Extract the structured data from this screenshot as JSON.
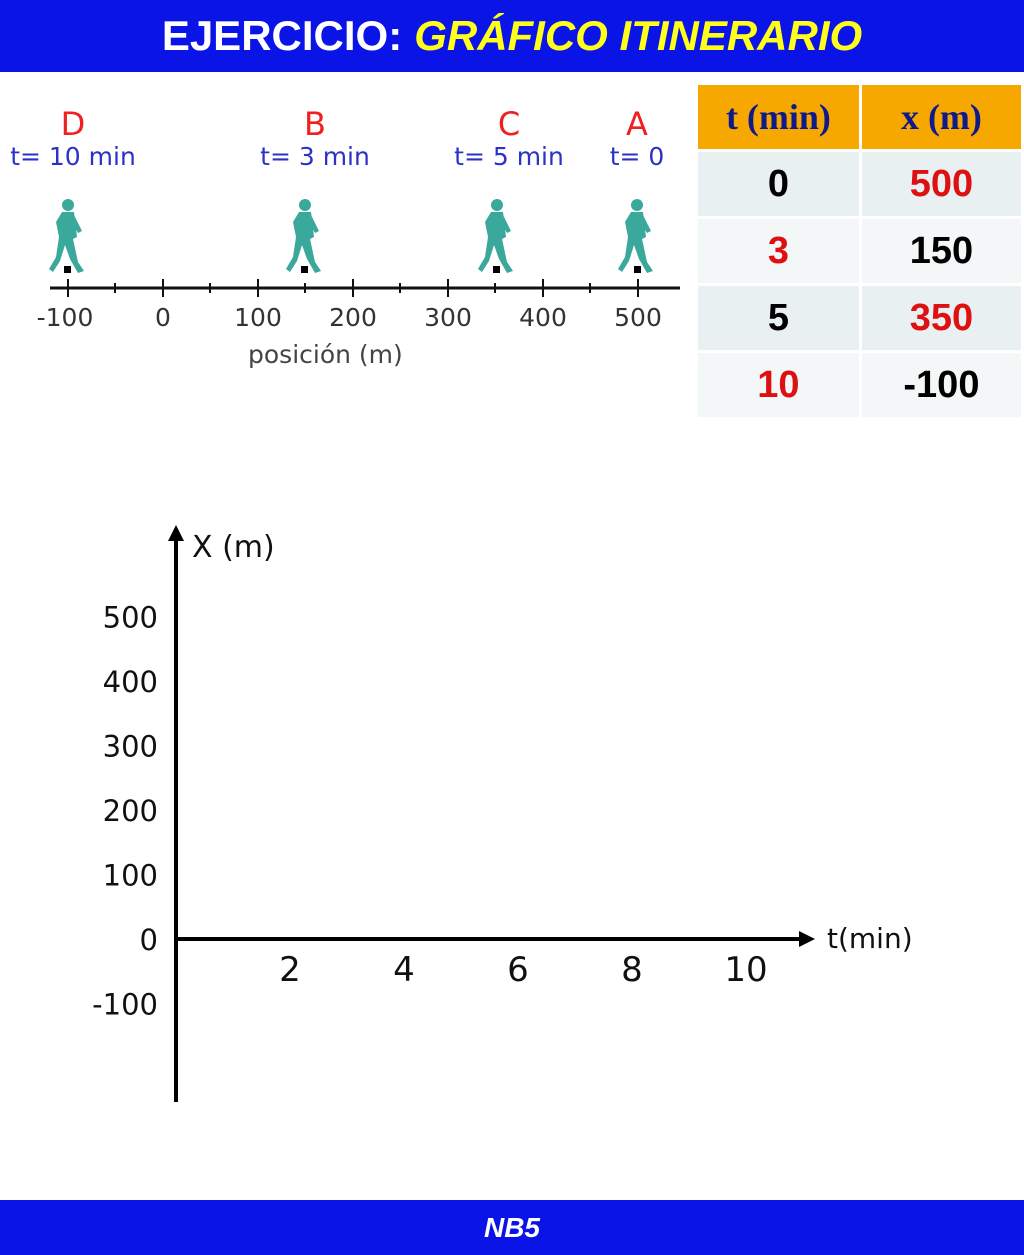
{
  "header": {
    "title_prefix": "EJERCICIO:",
    "title_highlight": "GRÁFICO ITINERARIO"
  },
  "footer": {
    "text": "NB5"
  },
  "number_line": {
    "points": [
      {
        "letter": "D",
        "time": "t= 10 min",
        "position_m": -100
      },
      {
        "letter": "B",
        "time": "t= 3 min",
        "position_m": 150
      },
      {
        "letter": "C",
        "time": "t= 5 min",
        "position_m": 350
      },
      {
        "letter": "A",
        "time": "t= 0",
        "position_m": 500
      }
    ],
    "ticks": [
      "-100",
      "0",
      "100",
      "200",
      "300",
      "400",
      "500"
    ],
    "axis_label": "posición (m)",
    "walker_color": "#3aa89a"
  },
  "table": {
    "headers": [
      "t (min)",
      "x (m)"
    ],
    "rows": [
      [
        "0",
        "500"
      ],
      [
        "3",
        "150"
      ],
      [
        "5",
        "350"
      ],
      [
        "10",
        "-100"
      ]
    ],
    "header_bg": "#f7a800",
    "accent_red": "#dd1111"
  },
  "chart_data": {
    "type": "line",
    "title": "",
    "xlabel": "t(min)",
    "ylabel": "X (m)",
    "x_ticks": [
      "2",
      "4",
      "6",
      "8",
      "10"
    ],
    "y_ticks": [
      "500",
      "400",
      "300",
      "200",
      "100",
      "0",
      "-100"
    ],
    "xlim": [
      0,
      10
    ],
    "ylim": [
      -100,
      500
    ],
    "series": []
  }
}
